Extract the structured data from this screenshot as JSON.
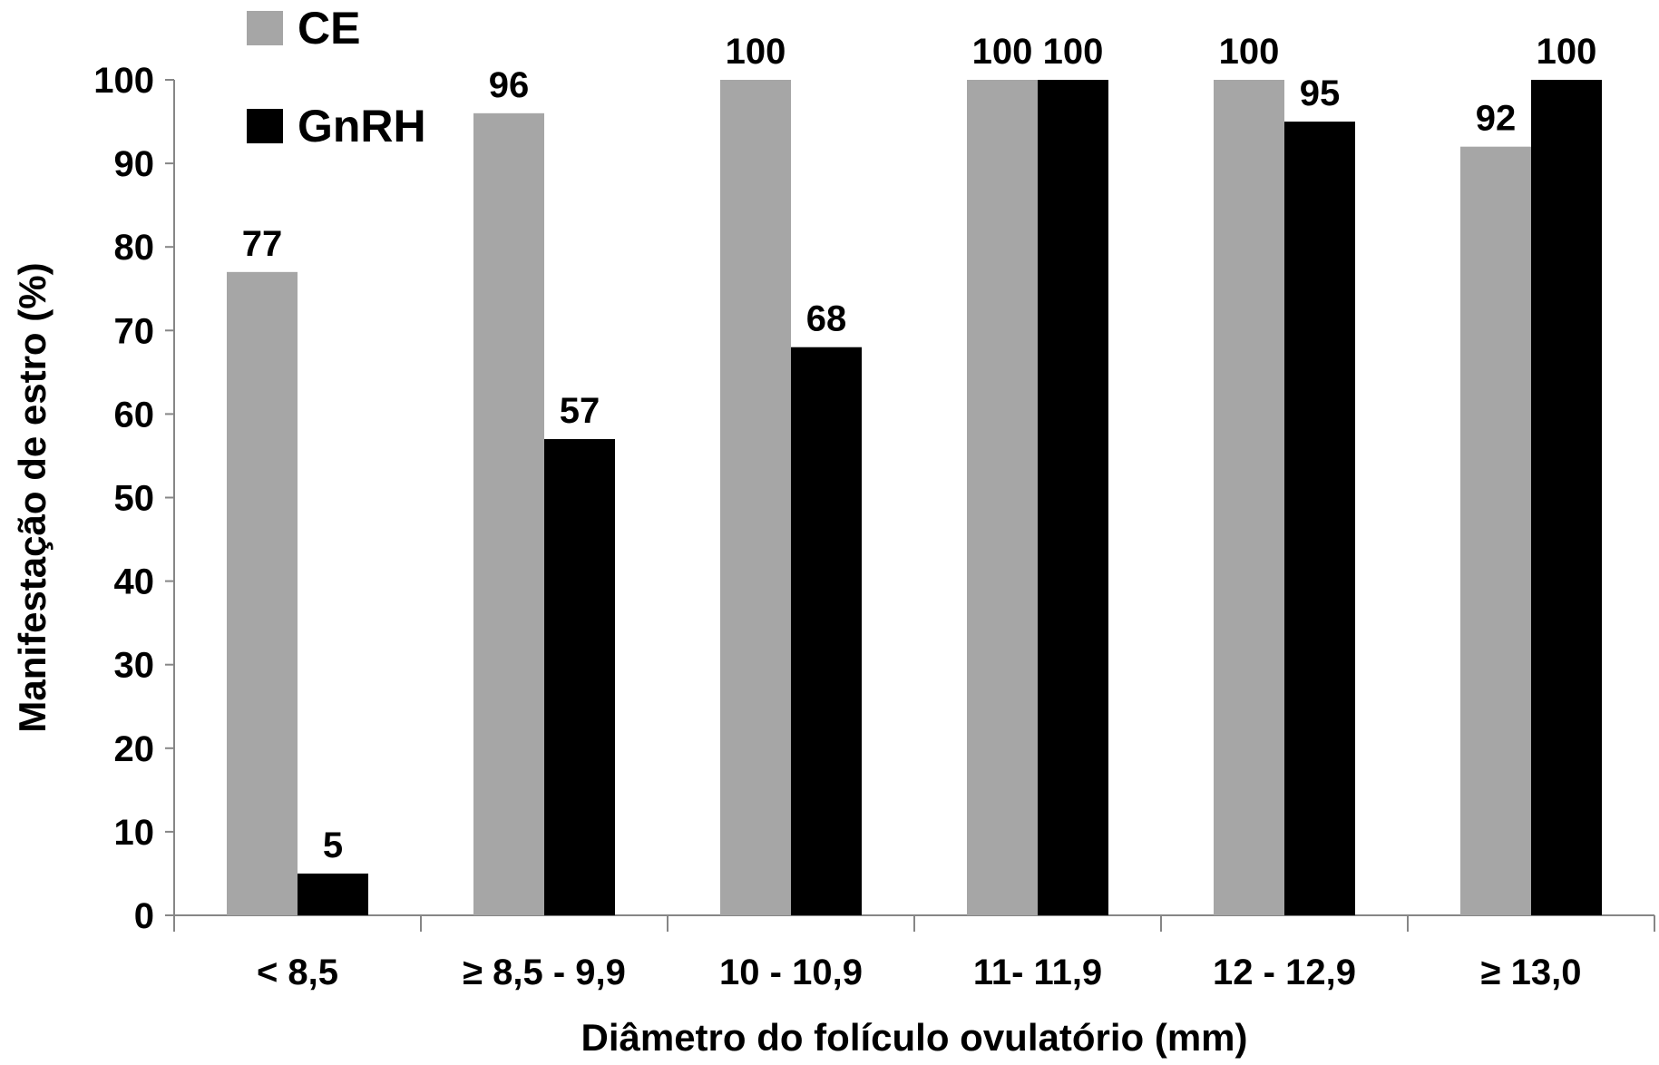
{
  "chart_data": {
    "type": "bar",
    "title": "",
    "xlabel": "Diâmetro do folículo ovulatório (mm)",
    "ylabel": "Manifestação de estro (%)",
    "ylim": [
      0,
      100
    ],
    "yticks": [
      0,
      10,
      20,
      30,
      40,
      50,
      60,
      70,
      80,
      90,
      100
    ],
    "categories": [
      "< 8,5",
      "≥ 8,5 - 9,9",
      "10 - 10,9",
      "11- 11,9",
      "12 - 12,9",
      "≥ 13,0"
    ],
    "series": [
      {
        "name": "CE",
        "color": "#a6a6a6",
        "values": [
          77,
          96,
          100,
          100,
          100,
          92
        ]
      },
      {
        "name": "GnRH",
        "color": "#000000",
        "values": [
          5,
          57,
          68,
          100,
          95,
          100
        ]
      }
    ],
    "data_labels": true,
    "grid": false,
    "legend": "top-left"
  }
}
